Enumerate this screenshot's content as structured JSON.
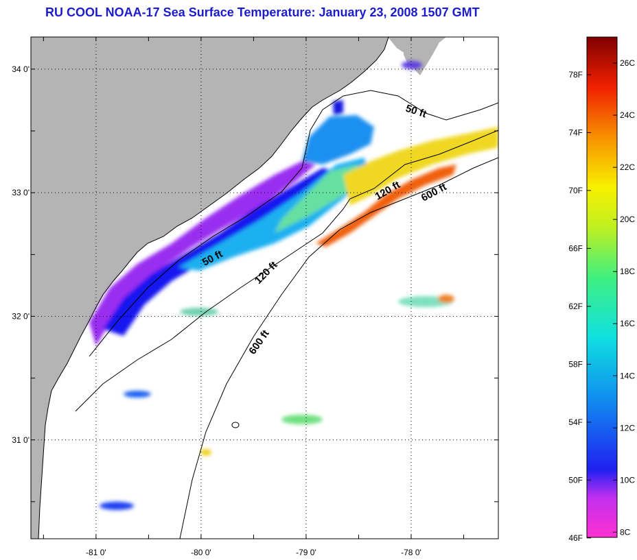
{
  "title": "RU COOL  NOAA-17  Sea Surface Temperature:  January 23, 2008 1507 GMT",
  "map": {
    "lat_ticks": [
      {
        "value": 34.0,
        "label": "34 0'"
      },
      {
        "value": 33.0,
        "label": "33 0'"
      },
      {
        "value": 32.0,
        "label": "32 0'"
      },
      {
        "value": 31.0,
        "label": "31 0'"
      }
    ],
    "lon_ticks": [
      {
        "value": -81.0,
        "label": "-81 0'"
      },
      {
        "value": -80.0,
        "label": "-80 0'"
      },
      {
        "value": -79.0,
        "label": "-79 0'"
      },
      {
        "value": -78.0,
        "label": "-78 0'"
      }
    ],
    "contour_labels": [
      {
        "text": "50 ft",
        "rotate": 18
      },
      {
        "text": "120 ft",
        "rotate": -30
      },
      {
        "text": "600 ft",
        "rotate": -28
      },
      {
        "text": "50 ft",
        "rotate": -28
      },
      {
        "text": "120 ft",
        "rotate": -45
      },
      {
        "text": "600 ft",
        "rotate": -55
      }
    ]
  },
  "colorbar": {
    "f_labels": [
      "78F",
      "74F",
      "70F",
      "66F",
      "62F",
      "58F",
      "54F",
      "50F",
      "46F"
    ],
    "c_labels": [
      "26C",
      "24C",
      "22C",
      "20C",
      "18C",
      "16C",
      "14C",
      "12C",
      "10C",
      "8C"
    ],
    "min_c": 7.8,
    "max_c": 27.0
  },
  "colors": {
    "land": "#b4b4b4",
    "ocean": "#ffffff",
    "title": "#1c1ccc"
  }
}
